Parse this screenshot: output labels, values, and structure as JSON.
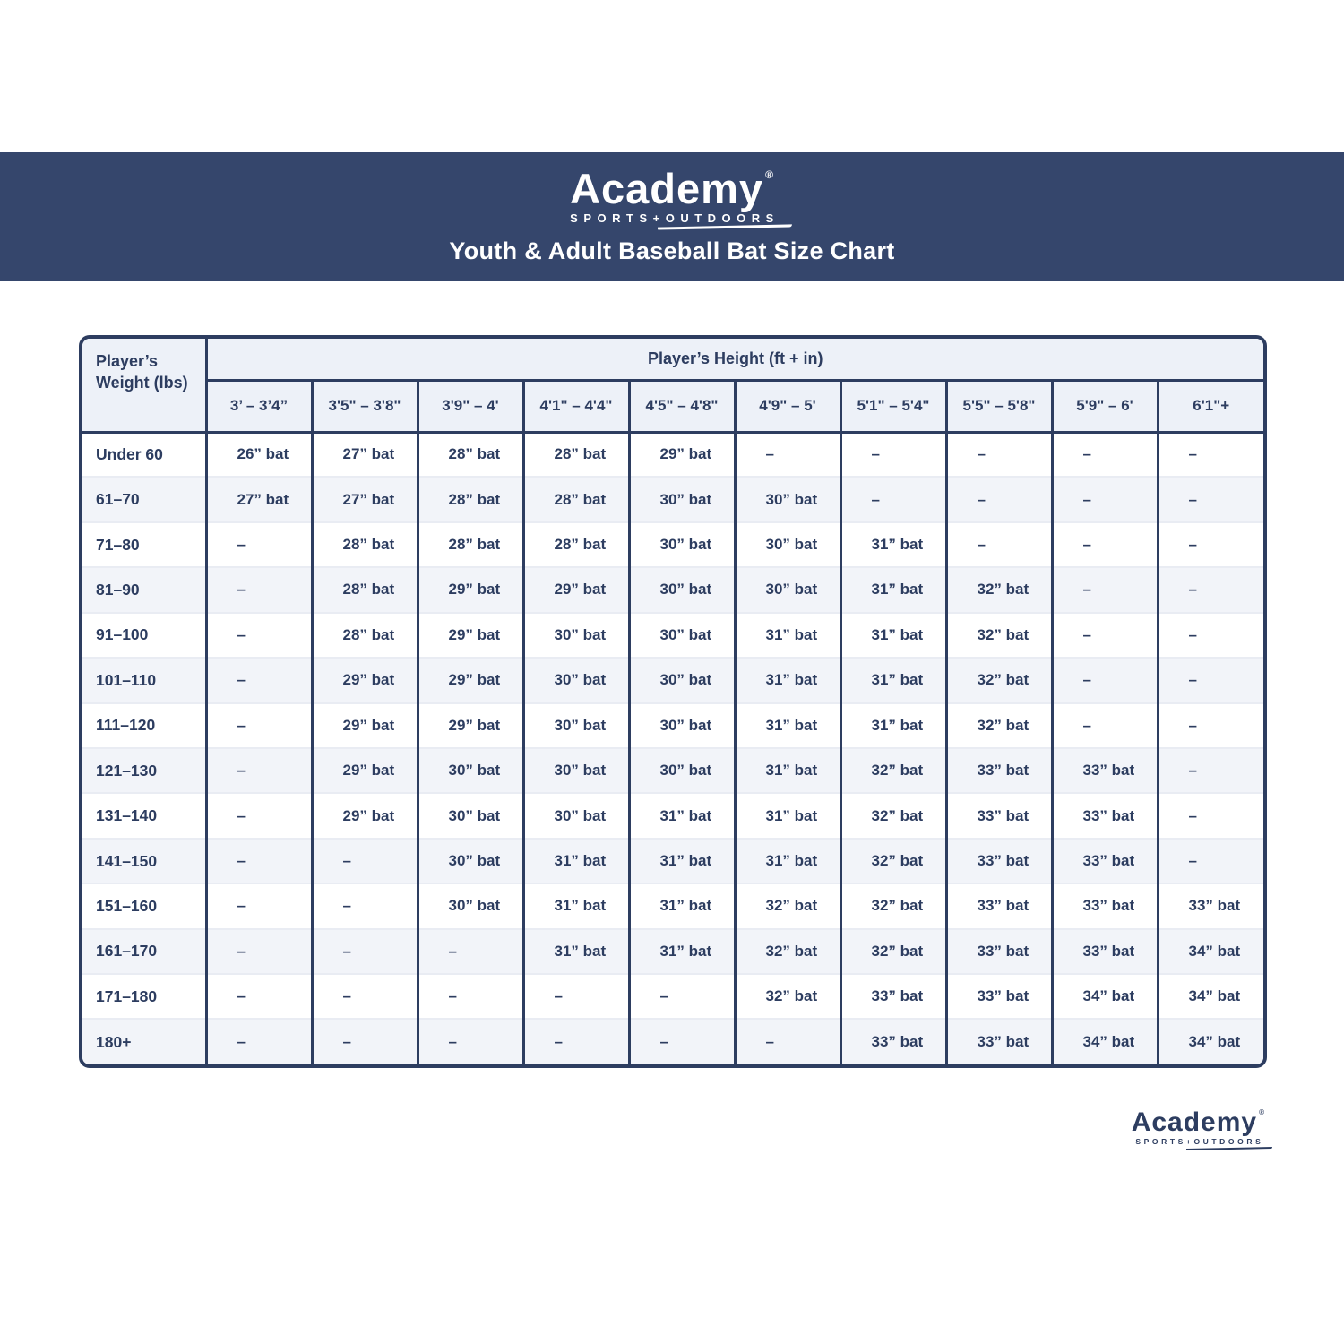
{
  "brand": {
    "name": "Academy",
    "reg": "®",
    "tagline": "SPORTS+OUTDOORS"
  },
  "header": {
    "subtitle": "Youth & Adult Baseball Bat Size Chart"
  },
  "colors": {
    "band_navy": "#35466c",
    "border_navy": "#2d3d60",
    "text_navy": "#2d3d60",
    "header_cell_bg": "#edf1f8",
    "row_alt_bg": "#f2f4f9",
    "white": "#ffffff"
  },
  "chart_data": {
    "type": "table",
    "title": "Youth & Adult Baseball Bat Size Chart",
    "corner_header": "Player’s Weight (lbs)",
    "group_header": "Player’s Height (ft + in)",
    "columns": [
      "3’ – 3’4”",
      "3'5\" – 3'8\"",
      "3'9\" – 4'",
      "4'1\" – 4'4\"",
      "4'5\" – 4'8\"",
      "4'9\" – 5'",
      "5'1\" – 5'4\"",
      "5'5\" – 5'8\"",
      "5'9\" – 6'",
      "6'1\"+"
    ],
    "rows": [
      {
        "weight": "Under 60",
        "cells": [
          "26” bat",
          "27” bat",
          "28” bat",
          "28” bat",
          "29” bat",
          "–",
          "–",
          "–",
          "–",
          "–"
        ]
      },
      {
        "weight": "61–70",
        "cells": [
          "27” bat",
          "27” bat",
          "28” bat",
          "28” bat",
          "30” bat",
          "30” bat",
          "–",
          "–",
          "–",
          "–"
        ]
      },
      {
        "weight": "71–80",
        "cells": [
          "–",
          "28” bat",
          "28” bat",
          "28” bat",
          "30” bat",
          "30” bat",
          "31” bat",
          "–",
          "–",
          "–"
        ]
      },
      {
        "weight": "81–90",
        "cells": [
          "–",
          "28” bat",
          "29” bat",
          "29” bat",
          "30” bat",
          "30” bat",
          "31” bat",
          "32” bat",
          "–",
          "–"
        ]
      },
      {
        "weight": "91–100",
        "cells": [
          "–",
          "28” bat",
          "29” bat",
          "30” bat",
          "30” bat",
          "31” bat",
          "31” bat",
          "32” bat",
          "–",
          "–"
        ]
      },
      {
        "weight": "101–110",
        "cells": [
          "–",
          "29” bat",
          "29” bat",
          "30” bat",
          "30” bat",
          "31” bat",
          "31” bat",
          "32” bat",
          "–",
          "–"
        ]
      },
      {
        "weight": "111–120",
        "cells": [
          "–",
          "29” bat",
          "29” bat",
          "30” bat",
          "30” bat",
          "31” bat",
          "31” bat",
          "32” bat",
          "–",
          "–"
        ]
      },
      {
        "weight": "121–130",
        "cells": [
          "–",
          "29” bat",
          "30” bat",
          "30” bat",
          "30” bat",
          "31” bat",
          "32” bat",
          "33” bat",
          "33” bat",
          "–"
        ]
      },
      {
        "weight": "131–140",
        "cells": [
          "–",
          "29” bat",
          "30” bat",
          "30” bat",
          "31” bat",
          "31” bat",
          "32” bat",
          "33” bat",
          "33” bat",
          "–"
        ]
      },
      {
        "weight": "141–150",
        "cells": [
          "–",
          "–",
          "30” bat",
          "31” bat",
          "31” bat",
          "31” bat",
          "32” bat",
          "33” bat",
          "33” bat",
          "–"
        ]
      },
      {
        "weight": "151–160",
        "cells": [
          "–",
          "–",
          "30” bat",
          "31” bat",
          "31” bat",
          "32” bat",
          "32” bat",
          "33” bat",
          "33” bat",
          "33” bat"
        ]
      },
      {
        "weight": "161–170",
        "cells": [
          "–",
          "–",
          "–",
          "31” bat",
          "31” bat",
          "32” bat",
          "32” bat",
          "33” bat",
          "33” bat",
          "34” bat"
        ]
      },
      {
        "weight": "171–180",
        "cells": [
          "–",
          "–",
          "–",
          "–",
          "–",
          "32” bat",
          "33” bat",
          "33” bat",
          "34” bat",
          "34” bat"
        ]
      },
      {
        "weight": "180+",
        "cells": [
          "–",
          "–",
          "–",
          "–",
          "–",
          "–",
          "33” bat",
          "33” bat",
          "34” bat",
          "34” bat"
        ]
      }
    ]
  }
}
